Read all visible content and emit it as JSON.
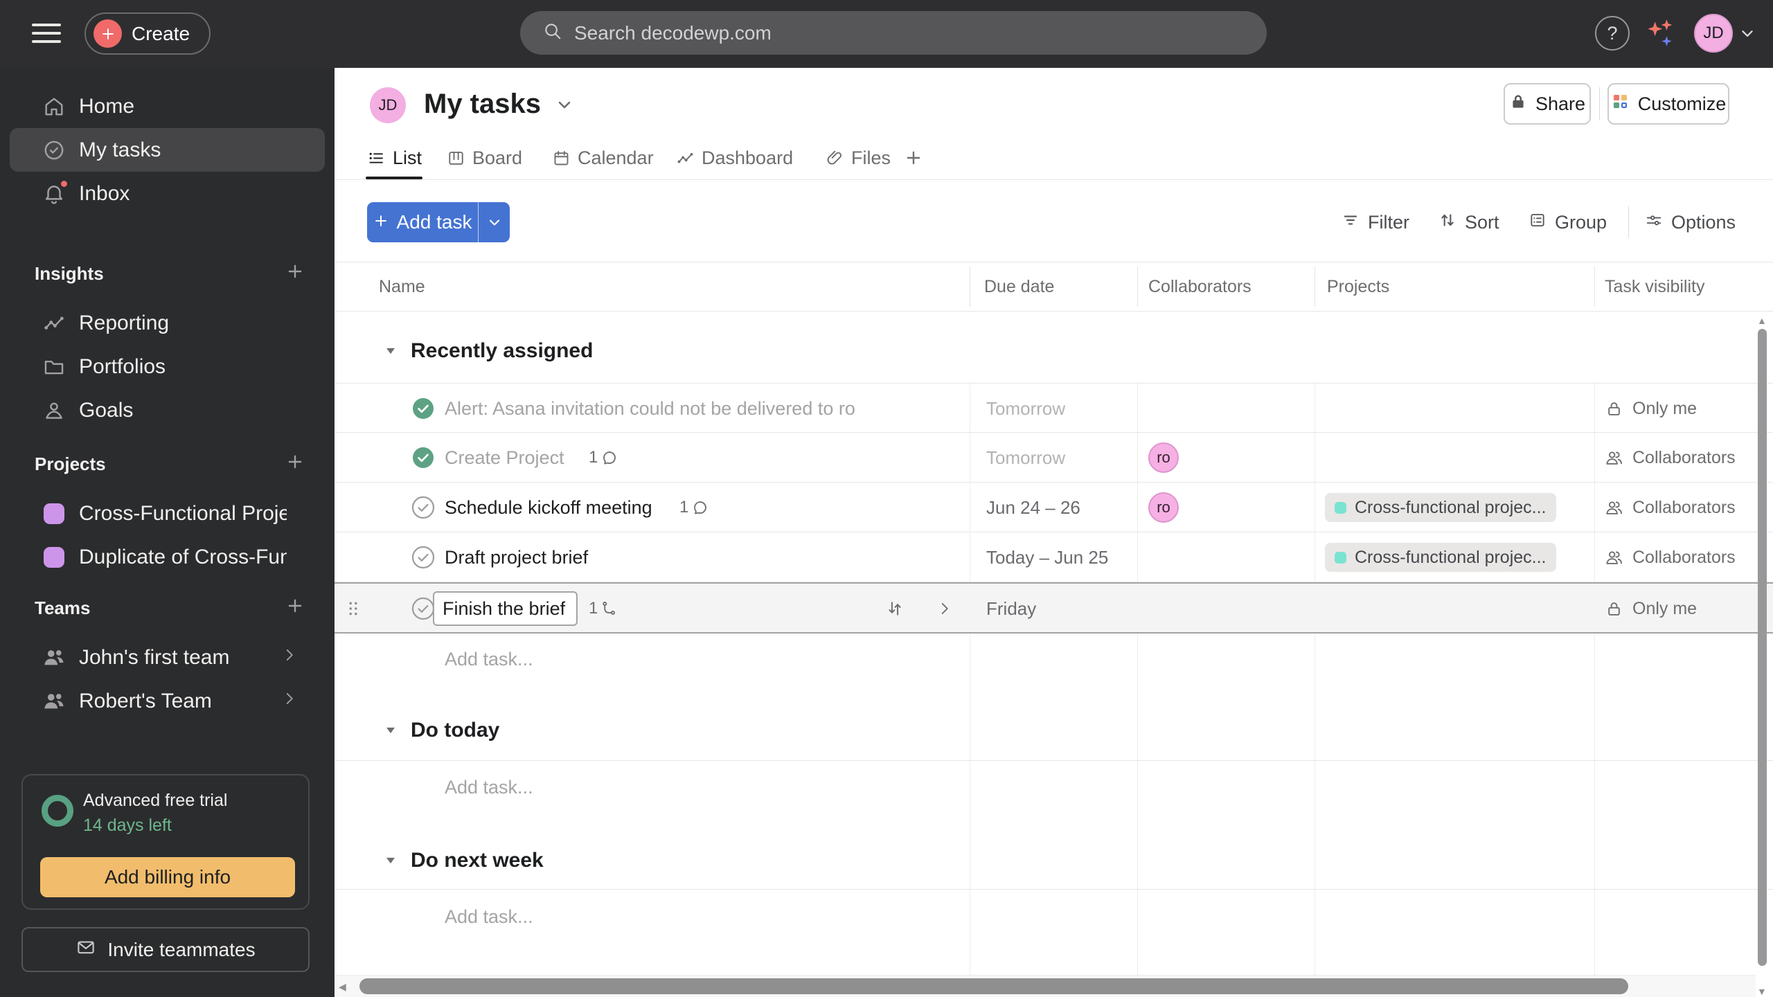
{
  "colors": {
    "accent_blue": "#4573d2",
    "coral": "#f06a6a",
    "done_green": "#5da283",
    "trial_green": "#58a182",
    "billing_orange": "#f1bd6c",
    "avatar_pink": "#f3aee2",
    "project_purple": "#cd95ea",
    "chip_teal": "#7be3d1"
  },
  "topbar": {
    "create_label": "Create",
    "search_placeholder": "Search decodewp.com",
    "help_label": "?",
    "avatar_initials": "JD"
  },
  "sidebar": {
    "primary": [
      {
        "label": "Home",
        "icon": "home",
        "active": false,
        "badge": false
      },
      {
        "label": "My tasks",
        "icon": "mytasks",
        "active": true,
        "badge": false
      },
      {
        "label": "Inbox",
        "icon": "bell",
        "active": false,
        "badge": true
      }
    ],
    "sections": [
      {
        "title": "Insights",
        "items": [
          {
            "label": "Reporting",
            "icon": "chart"
          },
          {
            "label": "Portfolios",
            "icon": "folder"
          },
          {
            "label": "Goals",
            "icon": "goal"
          }
        ]
      },
      {
        "title": "Projects",
        "items": [
          {
            "label": "Cross-Functional Project P...",
            "icon": "proj"
          },
          {
            "label": "Duplicate of Cross-Functi...",
            "icon": "proj"
          }
        ]
      },
      {
        "title": "Teams",
        "items": [
          {
            "label": "John's first team",
            "icon": "people",
            "chevron": true
          },
          {
            "label": "Robert's Team",
            "icon": "people",
            "chevron": true
          }
        ]
      }
    ],
    "trial": {
      "title": "Advanced free trial",
      "days_left": "14 days left",
      "button": "Add billing info"
    },
    "invite_label": "Invite teammates"
  },
  "header": {
    "avatar_initials": "JD",
    "title": "My tasks",
    "share_label": "Share",
    "customize_label": "Customize"
  },
  "tabs": [
    {
      "label": "List",
      "icon": "listTab",
      "active": true
    },
    {
      "label": "Board",
      "icon": "board",
      "active": false
    },
    {
      "label": "Calendar",
      "icon": "calendar",
      "active": false
    },
    {
      "label": "Dashboard",
      "icon": "chart",
      "active": false
    },
    {
      "label": "Files",
      "icon": "clip",
      "active": false
    }
  ],
  "toolbar": {
    "add_task": "Add task",
    "filter": "Filter",
    "sort": "Sort",
    "group": "Group",
    "options": "Options"
  },
  "table": {
    "columns": [
      "Name",
      "Due date",
      "Collaborators",
      "Projects",
      "Task visibility"
    ],
    "sections": [
      {
        "title": "Recently assigned",
        "rows": [
          {
            "name": "Alert: Asana invitation could not be delivered to ro",
            "completed": true,
            "due": "Tomorrow",
            "due_muted": true,
            "visibility": "Only me",
            "visibility_icon": "lock"
          },
          {
            "name": "Create Project",
            "completed": true,
            "comments": "1",
            "due": "Tomorrow",
            "due_muted": true,
            "collaborator": "ro",
            "visibility": "Collaborators",
            "visibility_icon": "people"
          },
          {
            "name": "Schedule kickoff meeting",
            "completed": false,
            "comments": "1",
            "due": "Jun 24 – 26",
            "due_muted": false,
            "collaborator": "ro",
            "project": "Cross-functional projec...",
            "visibility": "Collaborators",
            "visibility_icon": "people"
          },
          {
            "name": "Draft project brief",
            "completed": false,
            "due": "Today – Jun 25",
            "due_muted": false,
            "project": "Cross-functional projec...",
            "visibility": "Collaborators",
            "visibility_icon": "people"
          },
          {
            "name": "Finish the brief",
            "completed": false,
            "editing": true,
            "subtasks": "1",
            "due": "Friday",
            "due_muted": false,
            "visibility": "Only me",
            "visibility_icon": "lock"
          }
        ],
        "add_task": "Add task..."
      },
      {
        "title": "Do today",
        "rows": [],
        "add_task": "Add task..."
      },
      {
        "title": "Do next week",
        "rows": [],
        "add_task": "Add task..."
      }
    ]
  }
}
